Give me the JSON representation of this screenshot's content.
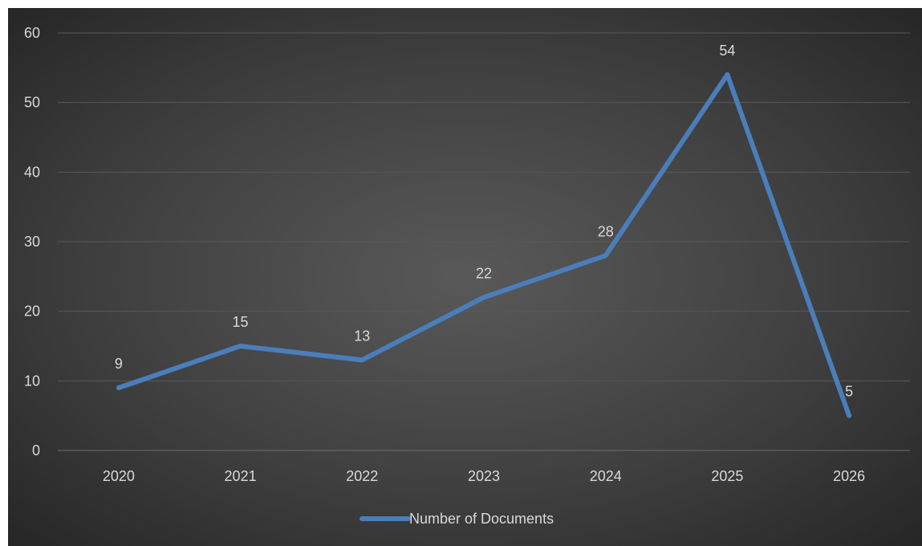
{
  "chart_data": {
    "type": "line",
    "categories": [
      "2020",
      "2021",
      "2022",
      "2023",
      "2024",
      "2025",
      "2026"
    ],
    "series": [
      {
        "name": "Number of Documents",
        "values": [
          9,
          15,
          13,
          22,
          28,
          54,
          5
        ],
        "color": "#4a7ebb"
      }
    ],
    "ylim": [
      0,
      60
    ],
    "yticks": [
      0,
      10,
      20,
      30,
      40,
      50,
      60
    ],
    "grid": true,
    "legend": "bottom",
    "data_labels": true,
    "background": "dark-gradient"
  }
}
